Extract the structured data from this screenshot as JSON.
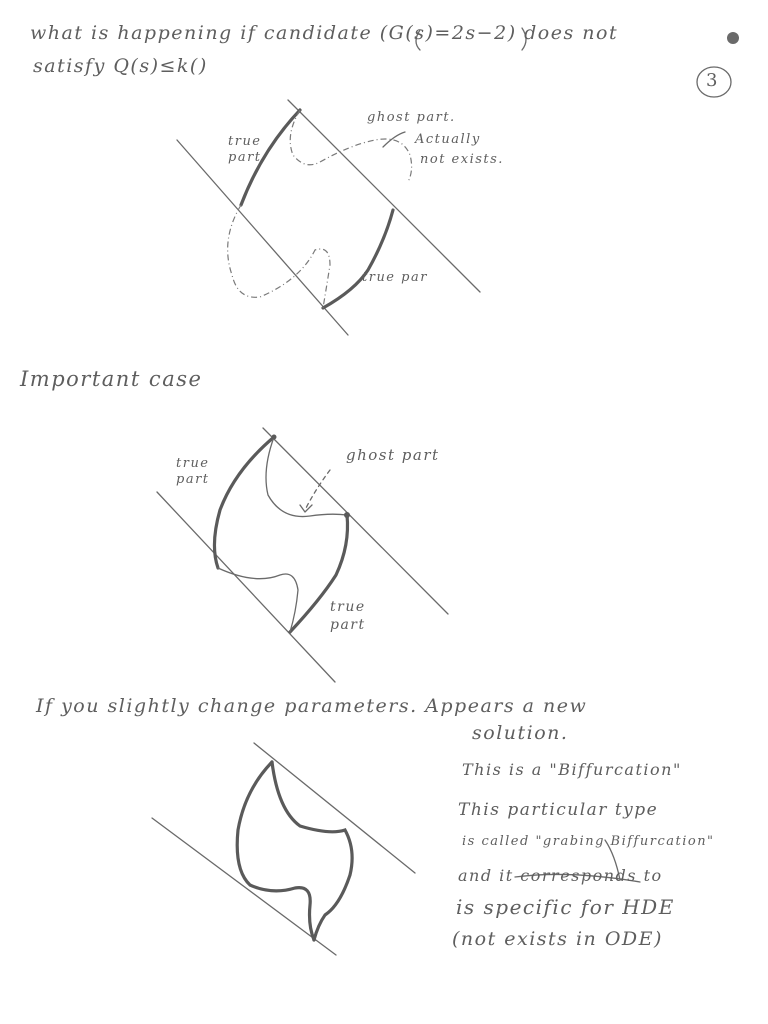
{
  "page": {
    "title_line1": "what is happening if candidate (G(s)=2s−2) does not",
    "title_line2": "satisfy Q(s)≤k()",
    "page_number": "3"
  },
  "figure1": {
    "label_true_part_top": "true part",
    "label_ghost_part": "ghost part.",
    "label_actually": "Actually",
    "label_not_exists": "not exists.",
    "label_true_part_bottom": "true par"
  },
  "section2": {
    "heading": "Important case"
  },
  "figure2": {
    "label_true_part_top": "true part",
    "label_ghost_part": "ghost part",
    "label_true_part_bottom": "true part"
  },
  "section3": {
    "heading_line1": "If you slightly change parameters. Appears a new",
    "heading_line2": "solution."
  },
  "notes": {
    "line1": "This is a \"Biffurcation\"",
    "line2": "This particular type",
    "line3": "is called \"grabing Biffurcation\"",
    "line4_struck": "and it corresponds to",
    "line5": "is specific for HDE",
    "line6": "(not exists in ODE)"
  }
}
